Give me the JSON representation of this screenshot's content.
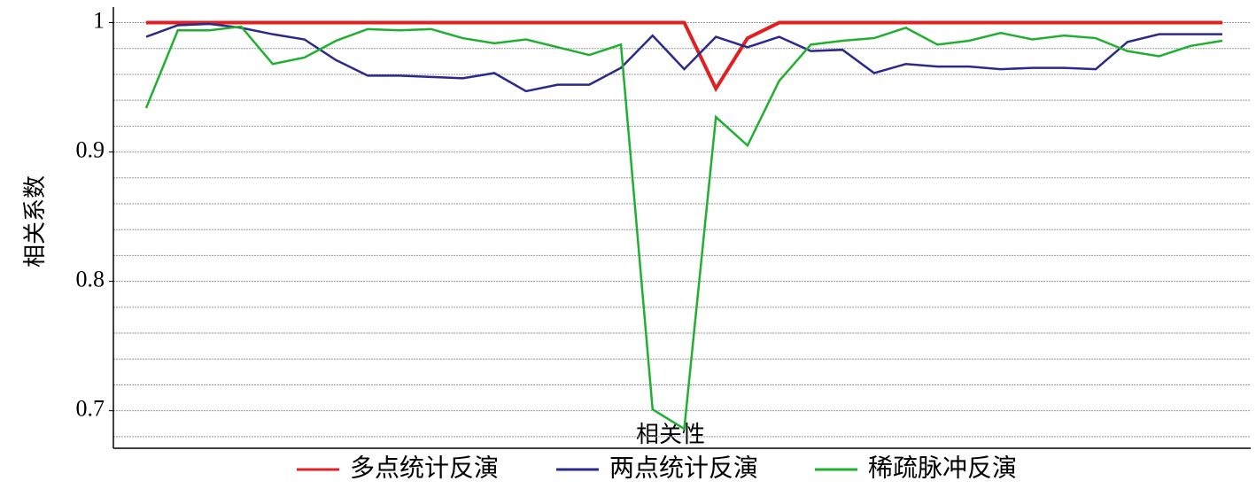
{
  "chart_data": {
    "type": "line",
    "y_label": "相关系数",
    "x_label": "相关性",
    "x": [
      1,
      2,
      3,
      4,
      5,
      6,
      7,
      8,
      9,
      10,
      11,
      12,
      13,
      14,
      15,
      16,
      17,
      18,
      19,
      20,
      21,
      22,
      23,
      24,
      25,
      26,
      27,
      28,
      29,
      30,
      31,
      32,
      33,
      34,
      35
    ],
    "xlim": [
      1,
      35
    ],
    "ylim": [
      0.671,
      1.012
    ],
    "yticks": [
      0.7,
      0.8,
      0.9,
      1
    ],
    "minor_yticks": [
      0.68,
      0.7,
      0.72,
      0.74,
      0.76,
      0.78,
      0.8,
      0.82,
      0.84,
      0.86,
      0.88,
      0.9,
      0.92,
      0.94,
      0.96,
      0.98,
      1
    ],
    "grid": true,
    "series": [
      {
        "name": "多点统计反演",
        "color": "#e02020",
        "values": [
          1,
          1,
          1,
          1,
          1,
          1,
          1,
          1,
          1,
          1,
          1,
          1,
          1,
          1,
          1,
          1,
          1,
          1,
          0.949,
          0.988,
          1,
          1,
          1,
          1,
          1,
          1,
          1,
          1,
          1,
          1,
          1,
          1,
          1,
          1,
          1
        ]
      },
      {
        "name": "两点统计反演",
        "color": "#2a2a8c",
        "values": [
          0.989,
          0.998,
          0.999,
          0.996,
          0.991,
          0.987,
          0.971,
          0.959,
          0.959,
          0.958,
          0.957,
          0.961,
          0.947,
          0.952,
          0.952,
          0.965,
          0.99,
          0.964,
          0.989,
          0.981,
          0.989,
          0.978,
          0.979,
          0.961,
          0.968,
          0.966,
          0.966,
          0.964,
          0.965,
          0.965,
          0.964,
          0.985,
          0.991,
          0.991,
          0.991
        ]
      },
      {
        "name": "稀疏脉冲反演",
        "color": "#20b030",
        "values": [
          0.934,
          0.994,
          0.994,
          0.997,
          0.968,
          0.973,
          0.986,
          0.995,
          0.994,
          0.995,
          0.988,
          0.984,
          0.987,
          0.981,
          0.975,
          0.983,
          0.701,
          0.686,
          0.927,
          0.905,
          0.955,
          0.983,
          0.986,
          0.988,
          0.996,
          0.983,
          0.986,
          0.992,
          0.987,
          0.99,
          0.988,
          0.978,
          0.974,
          0.982,
          0.986
        ]
      }
    ]
  }
}
